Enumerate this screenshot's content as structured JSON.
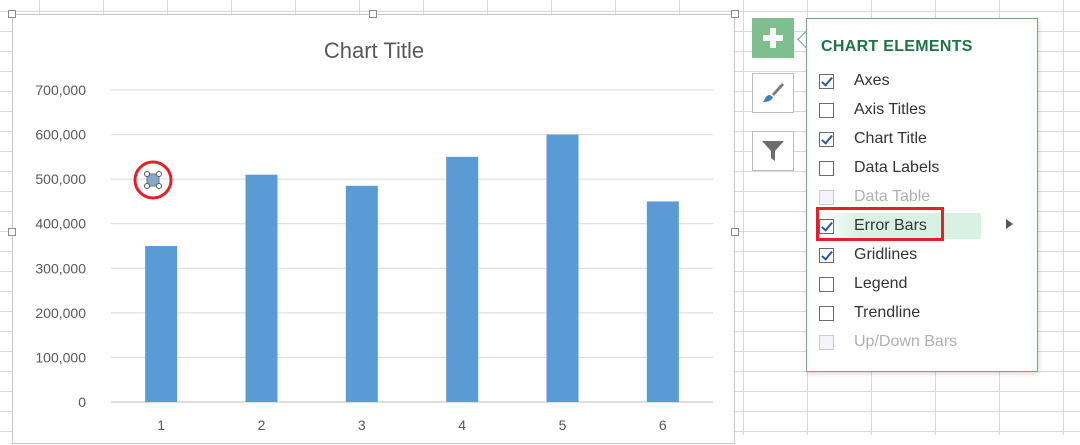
{
  "chart": {
    "title": "Chart Title",
    "series_color": "#5b9bd5"
  },
  "chart_data": {
    "type": "bar",
    "title": "Chart Title",
    "categories": [
      "1",
      "2",
      "3",
      "4",
      "5",
      "6"
    ],
    "values": [
      350000,
      510000,
      485000,
      550000,
      600000,
      450000
    ],
    "yticks": [
      "0",
      "100,000",
      "200,000",
      "300,000",
      "400,000",
      "500,000",
      "600,000",
      "700,000"
    ],
    "ylim": [
      0,
      700000
    ],
    "grid": true,
    "legend": "none"
  },
  "chart_buttons": [
    {
      "name": "chart-elements-button",
      "icon": "plus-icon",
      "active": true
    },
    {
      "name": "chart-styles-button",
      "icon": "brush-icon",
      "active": false
    },
    {
      "name": "chart-filters-button",
      "icon": "funnel-icon",
      "active": false
    }
  ],
  "panel": {
    "title": "CHART ELEMENTS",
    "items": [
      {
        "label": "Axes",
        "checked": true,
        "disabled": false
      },
      {
        "label": "Axis Titles",
        "checked": false,
        "disabled": false
      },
      {
        "label": "Chart Title",
        "checked": true,
        "disabled": false
      },
      {
        "label": "Data Labels",
        "checked": false,
        "disabled": false
      },
      {
        "label": "Data Table",
        "checked": false,
        "disabled": true
      },
      {
        "label": "Error Bars",
        "checked": true,
        "disabled": false,
        "highlighted": true
      },
      {
        "label": "Gridlines",
        "checked": true,
        "disabled": false
      },
      {
        "label": "Legend",
        "checked": false,
        "disabled": false
      },
      {
        "label": "Trendline",
        "checked": false,
        "disabled": false
      },
      {
        "label": "Up/Down Bars",
        "checked": false,
        "disabled": true
      }
    ]
  },
  "colors": {
    "accent_green": "#217346",
    "annotation_red": "#e5202a",
    "bar_blue": "#5b9bd5"
  }
}
